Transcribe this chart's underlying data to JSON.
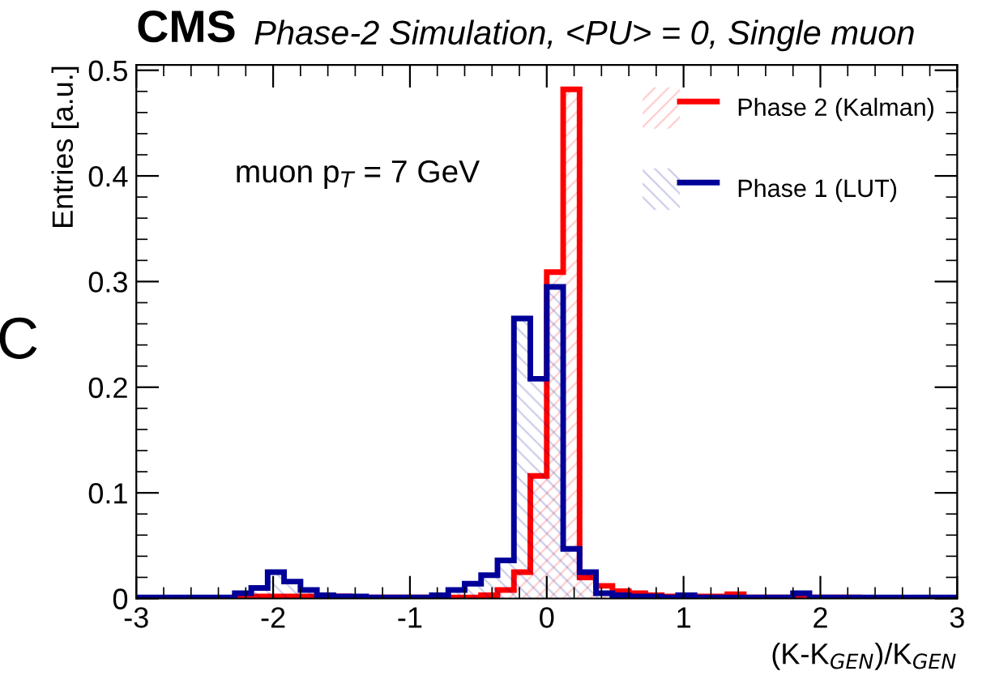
{
  "chart_data": {
    "type": "histogram",
    "title": "CMS",
    "subtitle": "Phase-2 Simulation, <PU> = 0, Single muon",
    "ylabel": "Entries [a.u.]",
    "xlabel": "(K-K$_{GEN}$)/K$_{GEN}$",
    "annotations": [
      "muon p$_{T}$ = 7 GeV",
      "C"
    ],
    "bins": [
      -3,
      -2.88,
      -2.76,
      -2.64,
      -2.52,
      -2.4,
      -2.28,
      -2.16,
      -2.04,
      -1.92,
      -1.8,
      -1.68,
      -1.56,
      -1.44,
      -1.32,
      -1.2,
      -1.08,
      -0.96,
      -0.84,
      -0.72,
      -0.6,
      -0.48,
      -0.36,
      -0.24,
      -0.12,
      0,
      0.12,
      0.24,
      0.36,
      0.48,
      0.6,
      0.72,
      0.84,
      0.96,
      1.08,
      1.2,
      1.32,
      1.44,
      1.56,
      1.68,
      1.8,
      1.92,
      2.04,
      2.16,
      2.28,
      2.4,
      2.52,
      2.64,
      2.76,
      2.88,
      3
    ],
    "series": [
      {
        "name": "Phase 2 (Kalman)",
        "color": "#ff0000",
        "values": [
          0,
          0,
          0,
          0,
          0,
          0,
          0.002,
          0.002,
          0.002,
          0.002,
          0.002,
          0.002,
          0.002,
          0.001,
          0.001,
          0.001,
          0.001,
          0.001,
          0.001,
          0.001,
          0.001,
          0.003,
          0.008,
          0.025,
          0.116,
          0.309,
          0.482,
          0.02,
          0.012,
          0.007,
          0.005,
          0.003,
          0.002,
          0.002,
          0.002,
          0.002,
          0.004,
          0.001,
          0.001,
          0.001,
          0.001,
          0.001,
          0.001,
          0.001,
          0,
          0,
          0,
          0,
          0,
          0
        ]
      },
      {
        "name": "Phase 1 (LUT)",
        "color": "#000099",
        "values": [
          0.001,
          0.001,
          0.001,
          0.001,
          0.001,
          0.001,
          0.005,
          0.01,
          0.025,
          0.016,
          0.008,
          0.003,
          0.002,
          0.002,
          0.001,
          0.001,
          0.001,
          0.001,
          0.003,
          0.008,
          0.014,
          0.022,
          0.036,
          0.265,
          0.208,
          0.295,
          0.047,
          0.025,
          0.005,
          0.003,
          0.002,
          0.002,
          0.001,
          0.003,
          0.001,
          0.001,
          0.001,
          0.001,
          0.001,
          0.001,
          0.005,
          0.001,
          0.001,
          0.001,
          0.001,
          0.001,
          0.001,
          0.001,
          0.001,
          0.001
        ]
      }
    ],
    "xlim": [
      -3,
      3
    ],
    "xticks": [
      -3,
      -2,
      -1,
      0,
      1,
      2,
      3
    ],
    "ylim": [
      0,
      0.505
    ],
    "yticks": [
      0,
      0.1,
      0.2,
      0.3,
      0.4,
      0.5
    ],
    "legend": "top right",
    "grid": false
  }
}
